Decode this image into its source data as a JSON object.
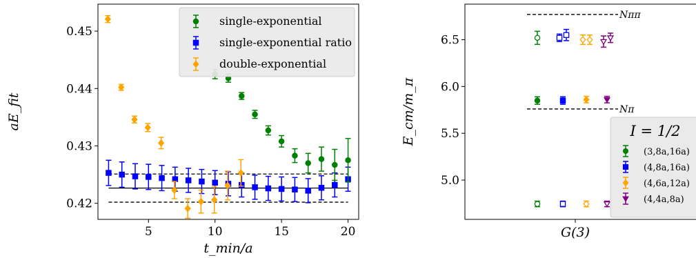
{
  "chart_data": [
    {
      "type": "scatter",
      "title": "",
      "xlabel": "t_min/a",
      "ylabel": "aE_fit",
      "xlim": [
        1.2,
        20.8
      ],
      "ylim": [
        0.4172,
        0.4547
      ],
      "xticks": [
        5,
        10,
        15,
        20
      ],
      "yticks": [
        0.42,
        0.43,
        0.44,
        0.45
      ],
      "xtick_labels": [
        "5",
        "10",
        "15",
        "20"
      ],
      "ytick_labels": [
        "0.42",
        "0.43",
        "0.44",
        "0.45"
      ],
      "grid": false,
      "legend_position": "top-right",
      "series": [
        {
          "name": "single-exponential",
          "color": "#008000",
          "marker": "circle",
          "x": [
            10,
            11,
            12,
            13,
            14,
            15,
            16,
            17,
            18,
            19,
            20
          ],
          "y": [
            0.4425,
            0.4418,
            0.4387,
            0.4355,
            0.4327,
            0.4308,
            0.4283,
            0.427,
            0.4277,
            0.4267,
            0.4275
          ],
          "err": [
            0.0008,
            0.0007,
            0.0006,
            0.0007,
            0.0008,
            0.001,
            0.0012,
            0.0017,
            0.0021,
            0.0027,
            0.0038
          ]
        },
        {
          "name": "single-exponential ratio",
          "color": "#0000ff",
          "marker": "square",
          "x": [
            2,
            3,
            4,
            5,
            6,
            7,
            8,
            9,
            10,
            11,
            12,
            13,
            14,
            15,
            16,
            17,
            18,
            19,
            20
          ],
          "y": [
            0.4253,
            0.425,
            0.4247,
            0.4246,
            0.4244,
            0.4242,
            0.424,
            0.4238,
            0.4236,
            0.4234,
            0.4232,
            0.4228,
            0.4226,
            0.4225,
            0.4224,
            0.4222,
            0.4227,
            0.4232,
            0.4242
          ],
          "err": [
            0.0022,
            0.0022,
            0.0022,
            0.0022,
            0.0022,
            0.0021,
            0.0021,
            0.0021,
            0.0021,
            0.0021,
            0.0021,
            0.0021,
            0.0021,
            0.0021,
            0.0021,
            0.0021,
            0.0021,
            0.0021,
            0.0021
          ]
        },
        {
          "name": "double-exponential",
          "color": "#ffa500",
          "marker": "diamond",
          "x": [
            2,
            3,
            4,
            5,
            6,
            7,
            8,
            9,
            10,
            11,
            12
          ],
          "y": [
            0.4521,
            0.4402,
            0.4346,
            0.4332,
            0.4305,
            0.4223,
            0.4191,
            0.4203,
            0.4206,
            0.4231,
            0.4253
          ],
          "err": [
            0.0006,
            0.0005,
            0.0006,
            0.0007,
            0.001,
            0.0015,
            0.0017,
            0.002,
            0.0023,
            0.0025,
            0.0023
          ]
        }
      ],
      "reference_lines": [
        {
          "y": 0.42265,
          "style": "solid"
        },
        {
          "y": 0.4251,
          "style": "dashed"
        },
        {
          "y": 0.4202,
          "style": "dashed"
        }
      ]
    },
    {
      "type": "scatter",
      "title": "",
      "xlabel": "G(3)",
      "ylabel": "E_cm/m_π",
      "ylim": [
        4.58,
        6.88
      ],
      "yticks": [
        5.0,
        5.5,
        6.0,
        6.5
      ],
      "ytick_labels": [
        "5.0",
        "5.5",
        "6.0",
        "6.5"
      ],
      "grid": false,
      "legend_position": "lower-right",
      "legend_title": "I = 1/2",
      "reference_lines": [
        {
          "y": 6.77,
          "label": "Nππ",
          "style": "dashed"
        },
        {
          "y": 5.76,
          "label": "Nπ",
          "style": "dashed"
        }
      ],
      "series": [
        {
          "name": "(3,8a,16a)",
          "color": "#008000",
          "marker": "circle",
          "points": [
            {
              "level": 1,
              "y": 4.745,
              "err": 0.03,
              "filled": false
            },
            {
              "level": 2,
              "y": 5.85,
              "err": 0.04,
              "filled": true
            },
            {
              "level": 3,
              "y": 6.52,
              "err": 0.07,
              "filled": false
            }
          ]
        },
        {
          "name": "(4,8a,16a)",
          "color": "#0000ff",
          "marker": "square",
          "points": [
            {
              "level": 1,
              "y": 4.745,
              "err": 0.03,
              "filled": false
            },
            {
              "level": 2,
              "y": 5.85,
              "err": 0.04,
              "filled": true
            },
            {
              "level": 3,
              "y": 6.52,
              "err": 0.04,
              "filled": false
            },
            {
              "level": 3,
              "y": 6.55,
              "err": 0.06,
              "filled": false
            }
          ]
        },
        {
          "name": "(4,6a,12a)",
          "color": "#ffa500",
          "marker": "diamond",
          "points": [
            {
              "level": 1,
              "y": 4.745,
              "err": 0.03,
              "filled": false
            },
            {
              "level": 2,
              "y": 5.86,
              "err": 0.035,
              "filled": true
            },
            {
              "level": 3,
              "y": 6.5,
              "err": 0.05,
              "filled": false
            },
            {
              "level": 3,
              "y": 6.5,
              "err": 0.05,
              "filled": false
            }
          ]
        },
        {
          "name": "(4,4a,8a)",
          "color": "#800080",
          "marker": "triangle-down",
          "points": [
            {
              "level": 1,
              "y": 4.745,
              "err": 0.03,
              "filled": false
            },
            {
              "level": 2,
              "y": 5.86,
              "err": 0.035,
              "filled": true
            },
            {
              "level": 3,
              "y": 6.48,
              "err": 0.06,
              "filled": false
            },
            {
              "level": 3,
              "y": 6.52,
              "err": 0.05,
              "filled": false
            }
          ]
        }
      ]
    }
  ]
}
